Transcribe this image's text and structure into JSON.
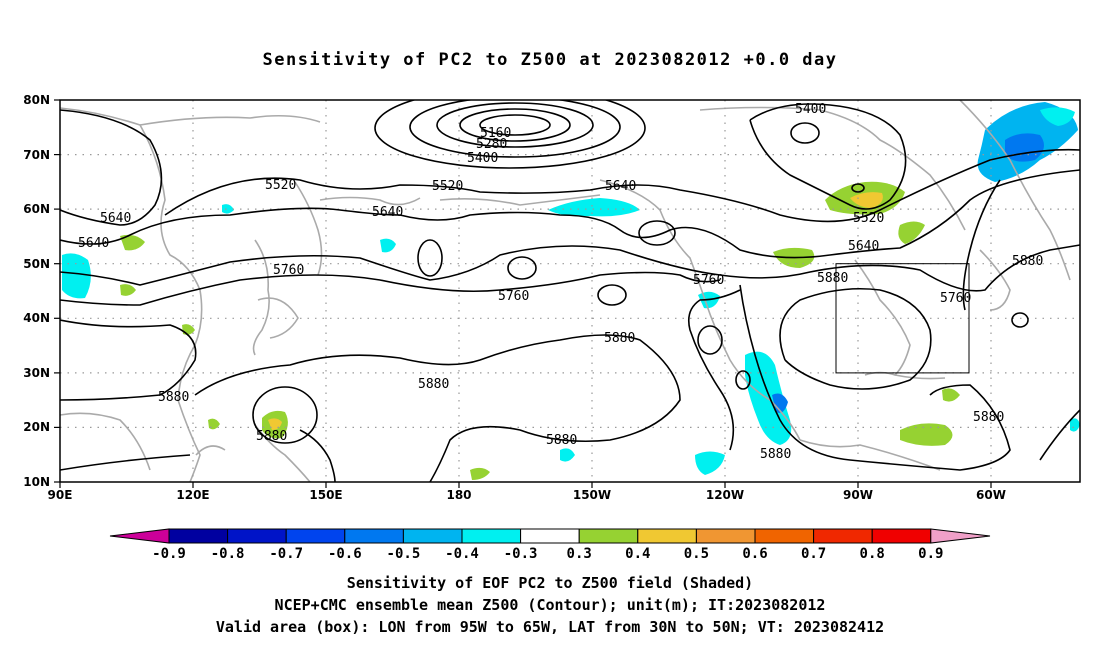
{
  "title": "Sensitivity of PC2 to Z500 at 2023082012 +0.0 day",
  "captions": [
    "Sensitivity of EOF PC2 to Z500 field (Shaded)",
    "NCEP+CMC ensemble mean Z500 (Contour); unit(m); IT:2023082012",
    "Valid area (box): LON from 95W to 65W, LAT from 30N to 50N; VT: 2023082412"
  ],
  "map": {
    "lon_range_east": [
      90,
      310
    ],
    "lat_range": [
      10,
      80
    ],
    "lat_ticks": [
      "80N",
      "70N",
      "60N",
      "50N",
      "40N",
      "30N",
      "20N",
      "10N"
    ],
    "lon_ticks": [
      "90E",
      "120E",
      "150E",
      "180",
      "150W",
      "120W",
      "90W",
      "60W"
    ],
    "grid": true,
    "valid_box": {
      "lon_west": -95,
      "lon_east": -65,
      "lat_south": 30,
      "lat_north": 50
    }
  },
  "colorbar": {
    "labels": [
      "-0.9",
      "-0.8",
      "-0.7",
      "-0.6",
      "-0.5",
      "-0.4",
      "-0.3",
      "0.3",
      "0.4",
      "0.5",
      "0.6",
      "0.7",
      "0.8",
      "0.9"
    ],
    "colors": [
      "#cc0099",
      "#0000a0",
      "#0014c8",
      "#0044ee",
      "#0078f0",
      "#00b4f0",
      "#00f0f0",
      "#ffffff",
      "#96d232",
      "#f0c832",
      "#f09632",
      "#f06400",
      "#f02800",
      "#f00000",
      "#f0a0c8"
    ]
  },
  "contours": {
    "labels": [
      "5160",
      "5280",
      "5400",
      "5400",
      "5520",
      "5520",
      "5640",
      "5640",
      "5640",
      "5640",
      "5520",
      "5640",
      "5760",
      "5760",
      "5760",
      "5880",
      "5880",
      "5880",
      "5880",
      "5880",
      "5880",
      "5880",
      "5880",
      "5880",
      "5760",
      "5880"
    ]
  }
}
